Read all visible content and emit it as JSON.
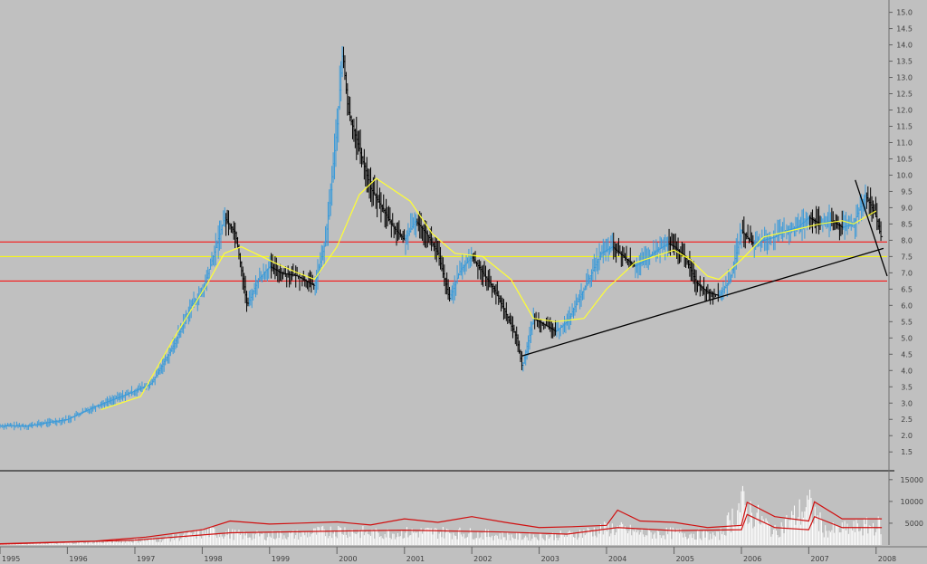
{
  "chart_data": [
    {
      "type": "line",
      "panel": "price",
      "ylim": [
        1.2,
        15.1
      ],
      "xlim": [
        "1995-01-01",
        "2008-03-01"
      ],
      "y_ticks": [
        "1.5",
        "2.0",
        "2.5",
        "3.0",
        "3.5",
        "4.0",
        "4.5",
        "5.0",
        "5.5",
        "6.0",
        "6.5",
        "7.0",
        "7.5",
        "8.0",
        "8.5",
        "9.0",
        "9.5",
        "10.0",
        "10.5",
        "11.0",
        "11.5",
        "12.0",
        "12.5",
        "13.0",
        "13.5",
        "14.0",
        "14.5",
        "15.0"
      ],
      "series": [
        {
          "style": "bar",
          "x": [
            "1995-01-01",
            "1995-06-01",
            "1996-01-01",
            "1996-06-01",
            "1996-12-01",
            "1997-04-01",
            "1997-08-01",
            "1997-11-01",
            "1998-01-01",
            "1998-03-01",
            "1998-05-01",
            "1998-07-01",
            "1998-09-01",
            "1998-11-01",
            "1999-01-01",
            "1999-03-01",
            "1999-06-01",
            "1999-09-01",
            "1999-11-01",
            "2000-01-01",
            "2000-02-01",
            "2000-03-01",
            "2000-05-01",
            "2000-07-01",
            "2000-09-01",
            "2000-11-01",
            "2001-01-01",
            "2001-03-01",
            "2001-05-01",
            "2001-07-01",
            "2001-09-01",
            "2001-11-01",
            "2002-01-01",
            "2002-03-01",
            "2002-05-01",
            "2002-07-01",
            "2002-09-01",
            "2002-10-01",
            "2002-12-01",
            "2003-02-01",
            "2003-04-01",
            "2003-06-01",
            "2003-09-01",
            "2003-12-01",
            "2004-02-01",
            "2004-04-01",
            "2004-06-01",
            "2004-08-01",
            "2004-10-01",
            "2004-12-01",
            "2005-01-01",
            "2005-03-01",
            "2005-05-01",
            "2005-07-01",
            "2005-09-01",
            "2005-11-01",
            "2006-01-01",
            "2006-03-01",
            "2006-05-01",
            "2006-07-01",
            "2006-09-01",
            "2006-11-01",
            "2007-01-01",
            "2007-03-01",
            "2007-05-01",
            "2007-07-01",
            "2007-09-01",
            "2007-11-01",
            "2007-12-01",
            "2008-01-01",
            "2008-02-01"
          ],
          "values": [
            2.3,
            2.3,
            2.5,
            2.9,
            3.3,
            3.6,
            4.8,
            6.0,
            6.4,
            7.5,
            8.7,
            8.2,
            6.0,
            6.8,
            7.2,
            7.0,
            6.9,
            6.6,
            8.0,
            11.5,
            13.8,
            12.0,
            10.8,
            9.6,
            9.0,
            8.4,
            8.0,
            8.6,
            8.2,
            7.6,
            6.2,
            7.1,
            7.5,
            7.0,
            6.5,
            5.8,
            5.0,
            4.1,
            5.6,
            5.4,
            5.2,
            5.5,
            6.5,
            7.6,
            7.8,
            7.5,
            7.2,
            7.4,
            7.7,
            7.9,
            7.8,
            7.5,
            6.7,
            6.4,
            6.3,
            6.8,
            8.3,
            7.9,
            8.0,
            8.1,
            8.3,
            8.4,
            8.7,
            8.5,
            8.6,
            8.4,
            8.5,
            9.4,
            9.1,
            8.7,
            8.0
          ]
        },
        {
          "style": "moving-average",
          "x": [
            "1996-07-01",
            "1997-02-01",
            "1997-08-01",
            "1998-02-01",
            "1998-05-01",
            "1998-08-01",
            "1999-02-01",
            "1999-06-01",
            "1999-09-01",
            "2000-01-01",
            "2000-05-01",
            "2000-08-01",
            "2001-02-01",
            "2001-06-01",
            "2001-10-01",
            "2002-03-01",
            "2002-08-01",
            "2002-12-01",
            "2003-04-01",
            "2003-09-01",
            "2004-01-01",
            "2004-06-01",
            "2005-01-01",
            "2005-04-01",
            "2005-07-01",
            "2005-09-01",
            "2006-01-01",
            "2006-05-01",
            "2006-10-01",
            "2007-03-01",
            "2007-07-01",
            "2007-09-01",
            "2008-01-01"
          ],
          "values": [
            2.8,
            3.2,
            5.0,
            6.7,
            7.6,
            7.8,
            7.3,
            7.0,
            6.8,
            7.8,
            9.4,
            9.9,
            9.2,
            8.2,
            7.6,
            7.5,
            6.8,
            5.6,
            5.5,
            5.6,
            6.5,
            7.3,
            7.7,
            7.4,
            6.9,
            6.8,
            7.4,
            8.1,
            8.3,
            8.5,
            8.6,
            8.5,
            8.9
          ]
        }
      ],
      "hlines": [
        {
          "value": 7.95,
          "color": "#ff0000"
        },
        {
          "value": 7.5,
          "color": "#ffff00"
        },
        {
          "value": 6.75,
          "color": "#ff0000"
        }
      ],
      "trendlines": [
        {
          "x": [
            "2002-10-01",
            "2008-02-10"
          ],
          "values": [
            4.45,
            7.75
          ],
          "color": "#000000"
        },
        {
          "x": [
            "2007-09-10",
            "2008-03-01"
          ],
          "values": [
            9.85,
            6.9
          ],
          "color": "#000000"
        }
      ]
    },
    {
      "type": "bar",
      "panel": "volume",
      "ylim": [
        0,
        16000
      ],
      "y_ticks": [
        "5000",
        "10000",
        "15000"
      ],
      "x_labels": [
        "1995",
        "1996",
        "1997",
        "1998",
        "1999",
        "2000",
        "2001",
        "2002",
        "2003",
        "2004",
        "2005",
        "2006",
        "2007",
        "2008"
      ],
      "series": [
        {
          "style": "bar",
          "x": [
            "1995-06-01",
            "1996-06-01",
            "1997-06-01",
            "1998-03-01",
            "1998-09-01",
            "1999-06-01",
            "2000-02-01",
            "2000-08-01",
            "2001-06-01",
            "2002-02-01",
            "2002-09-01",
            "2003-06-01",
            "2004-02-01",
            "2004-08-01",
            "2005-02-01",
            "2005-09-01",
            "2006-01-01",
            "2006-07-01",
            "2007-01-01",
            "2007-04-01",
            "2007-09-01",
            "2008-01-01"
          ],
          "values": [
            300,
            700,
            1500,
            3500,
            2500,
            2800,
            4000,
            3000,
            3500,
            3000,
            2200,
            2600,
            4500,
            3000,
            3200,
            2400,
            11000,
            3500,
            10500,
            3800,
            4500,
            5200
          ]
        },
        {
          "style": "line",
          "x": [
            "1995-01-01",
            "1996-06-01",
            "1997-03-01",
            "1998-01-01",
            "1998-06-01",
            "1999-01-01",
            "1999-06-01",
            "2000-01-01",
            "2000-07-01",
            "2001-01-01",
            "2001-07-01",
            "2002-01-01",
            "2002-07-01",
            "2003-01-01",
            "2003-07-01",
            "2004-01-01",
            "2004-03-01",
            "2004-07-01",
            "2005-01-01",
            "2005-07-01",
            "2006-01-01",
            "2006-02-01",
            "2006-07-01",
            "2007-01-01",
            "2007-02-01",
            "2007-07-01",
            "2008-01-01",
            "2008-02-01"
          ],
          "values": [
            300,
            900,
            1800,
            3500,
            5500,
            4800,
            5000,
            5300,
            4600,
            6000,
            5200,
            6500,
            5200,
            4000,
            4200,
            4500,
            8000,
            5500,
            5200,
            4000,
            4500,
            9800,
            6500,
            5500,
            9900,
            6000,
            6000,
            6000
          ]
        },
        {
          "style": "line",
          "x": [
            "1995-01-01",
            "1997-01-01",
            "1998-06-01",
            "2000-01-01",
            "2001-01-01",
            "2002-06-01",
            "2003-06-01",
            "2004-03-01",
            "2005-01-01",
            "2006-01-01",
            "2006-02-01",
            "2006-07-01",
            "2007-01-01",
            "2007-02-01",
            "2007-07-01",
            "2008-02-01"
          ],
          "values": [
            200,
            1100,
            2800,
            3200,
            3400,
            3000,
            2500,
            4000,
            3300,
            3500,
            7000,
            4000,
            3500,
            6500,
            4000,
            4000
          ]
        }
      ]
    }
  ]
}
